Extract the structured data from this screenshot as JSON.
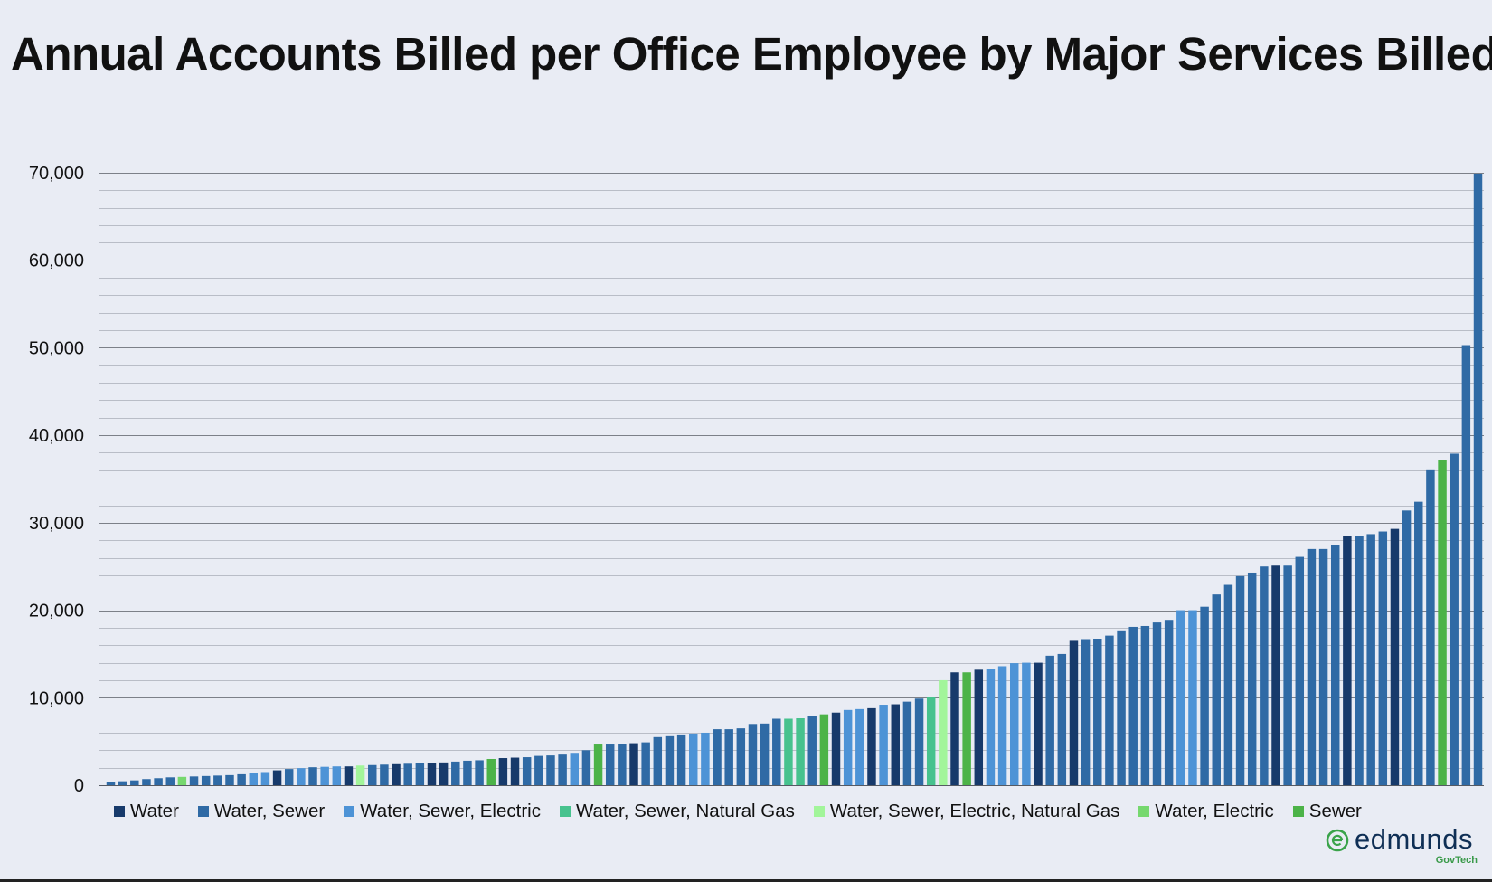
{
  "chart_data": {
    "type": "bar",
    "title": "Annual Accounts Billed per Office Employee by Major Services Billed",
    "xlabel": "",
    "ylabel": "",
    "ylim": [
      0,
      70000
    ],
    "y_major_ticks": [
      0,
      10000,
      20000,
      30000,
      40000,
      50000,
      60000,
      70000
    ],
    "y_tick_labels": [
      "0",
      "10,000",
      "20,000",
      "30,000",
      "40,000",
      "50,000",
      "60,000",
      "70,000"
    ],
    "minor_gridlines": true,
    "legend_position": "bottom",
    "series": [
      {
        "name": "Water",
        "color": "#173a6b"
      },
      {
        "name": "Water, Sewer",
        "color": "#2f6aa5"
      },
      {
        "name": "Water, Sewer, Electric",
        "color": "#4d93d6"
      },
      {
        "name": "Water, Sewer, Natural Gas",
        "color": "#47c28e"
      },
      {
        "name": "Water, Sewer, Electric, Natural Gas",
        "color": "#a2f59a"
      },
      {
        "name": "Water, Electric",
        "color": "#76d86e"
      },
      {
        "name": "Sewer",
        "color": "#4cb348"
      }
    ],
    "bars": [
      {
        "v": 400,
        "s": 1
      },
      {
        "v": 450,
        "s": 1
      },
      {
        "v": 550,
        "s": 1
      },
      {
        "v": 700,
        "s": 1
      },
      {
        "v": 800,
        "s": 1
      },
      {
        "v": 900,
        "s": 1
      },
      {
        "v": 950,
        "s": 5
      },
      {
        "v": 1000,
        "s": 1
      },
      {
        "v": 1050,
        "s": 1
      },
      {
        "v": 1100,
        "s": 1
      },
      {
        "v": 1150,
        "s": 1
      },
      {
        "v": 1250,
        "s": 1
      },
      {
        "v": 1350,
        "s": 2
      },
      {
        "v": 1500,
        "s": 2
      },
      {
        "v": 1700,
        "s": 0
      },
      {
        "v": 1850,
        "s": 1
      },
      {
        "v": 1950,
        "s": 2
      },
      {
        "v": 2050,
        "s": 1
      },
      {
        "v": 2100,
        "s": 2
      },
      {
        "v": 2150,
        "s": 2
      },
      {
        "v": 2150,
        "s": 0
      },
      {
        "v": 2250,
        "s": 4
      },
      {
        "v": 2300,
        "s": 1
      },
      {
        "v": 2350,
        "s": 1
      },
      {
        "v": 2400,
        "s": 0
      },
      {
        "v": 2450,
        "s": 1
      },
      {
        "v": 2500,
        "s": 1
      },
      {
        "v": 2550,
        "s": 0
      },
      {
        "v": 2600,
        "s": 0
      },
      {
        "v": 2700,
        "s": 1
      },
      {
        "v": 2800,
        "s": 1
      },
      {
        "v": 2850,
        "s": 1
      },
      {
        "v": 3000,
        "s": 6
      },
      {
        "v": 3100,
        "s": 0
      },
      {
        "v": 3150,
        "s": 0
      },
      {
        "v": 3200,
        "s": 1
      },
      {
        "v": 3350,
        "s": 1
      },
      {
        "v": 3400,
        "s": 1
      },
      {
        "v": 3500,
        "s": 1
      },
      {
        "v": 3700,
        "s": 2
      },
      {
        "v": 4000,
        "s": 1
      },
      {
        "v": 4650,
        "s": 6
      },
      {
        "v": 4650,
        "s": 1
      },
      {
        "v": 4700,
        "s": 1
      },
      {
        "v": 4800,
        "s": 0
      },
      {
        "v": 4900,
        "s": 1
      },
      {
        "v": 5500,
        "s": 1
      },
      {
        "v": 5600,
        "s": 1
      },
      {
        "v": 5800,
        "s": 1
      },
      {
        "v": 5900,
        "s": 2
      },
      {
        "v": 6000,
        "s": 2
      },
      {
        "v": 6400,
        "s": 1
      },
      {
        "v": 6400,
        "s": 1
      },
      {
        "v": 6500,
        "s": 1
      },
      {
        "v": 7000,
        "s": 1
      },
      {
        "v": 7050,
        "s": 1
      },
      {
        "v": 7600,
        "s": 1
      },
      {
        "v": 7600,
        "s": 3
      },
      {
        "v": 7650,
        "s": 3
      },
      {
        "v": 7900,
        "s": 1
      },
      {
        "v": 8100,
        "s": 6
      },
      {
        "v": 8300,
        "s": 0
      },
      {
        "v": 8600,
        "s": 2
      },
      {
        "v": 8700,
        "s": 2
      },
      {
        "v": 8800,
        "s": 0
      },
      {
        "v": 9200,
        "s": 2
      },
      {
        "v": 9250,
        "s": 0
      },
      {
        "v": 9550,
        "s": 1
      },
      {
        "v": 9900,
        "s": 1
      },
      {
        "v": 10100,
        "s": 3
      },
      {
        "v": 12000,
        "s": 4
      },
      {
        "v": 12900,
        "s": 0
      },
      {
        "v": 12900,
        "s": 6
      },
      {
        "v": 13200,
        "s": 0
      },
      {
        "v": 13300,
        "s": 2
      },
      {
        "v": 13600,
        "s": 2
      },
      {
        "v": 13950,
        "s": 2
      },
      {
        "v": 14000,
        "s": 2
      },
      {
        "v": 14000,
        "s": 0
      },
      {
        "v": 14800,
        "s": 1
      },
      {
        "v": 15000,
        "s": 1
      },
      {
        "v": 16500,
        "s": 0
      },
      {
        "v": 16700,
        "s": 1
      },
      {
        "v": 16750,
        "s": 1
      },
      {
        "v": 17100,
        "s": 1
      },
      {
        "v": 17700,
        "s": 1
      },
      {
        "v": 18100,
        "s": 1
      },
      {
        "v": 18200,
        "s": 1
      },
      {
        "v": 18600,
        "s": 1
      },
      {
        "v": 18900,
        "s": 1
      },
      {
        "v": 20000,
        "s": 2
      },
      {
        "v": 20000,
        "s": 2
      },
      {
        "v": 20400,
        "s": 1
      },
      {
        "v": 21800,
        "s": 1
      },
      {
        "v": 22900,
        "s": 1
      },
      {
        "v": 23900,
        "s": 1
      },
      {
        "v": 24300,
        "s": 1
      },
      {
        "v": 25000,
        "s": 1
      },
      {
        "v": 25100,
        "s": 0
      },
      {
        "v": 25100,
        "s": 1
      },
      {
        "v": 26100,
        "s": 1
      },
      {
        "v": 27000,
        "s": 1
      },
      {
        "v": 27000,
        "s": 1
      },
      {
        "v": 27500,
        "s": 1
      },
      {
        "v": 28500,
        "s": 0
      },
      {
        "v": 28500,
        "s": 1
      },
      {
        "v": 28700,
        "s": 1
      },
      {
        "v": 29000,
        "s": 1
      },
      {
        "v": 29300,
        "s": 0
      },
      {
        "v": 31400,
        "s": 1
      },
      {
        "v": 32400,
        "s": 1
      },
      {
        "v": 36000,
        "s": 1
      },
      {
        "v": 37200,
        "s": 6
      },
      {
        "v": 37900,
        "s": 1
      },
      {
        "v": 50300,
        "s": 1
      },
      {
        "v": 69900,
        "s": 1
      }
    ]
  },
  "legend": {
    "items": [
      {
        "label": "Water",
        "color": "#173a6b"
      },
      {
        "label": "Water, Sewer",
        "color": "#2f6aa5"
      },
      {
        "label": "Water, Sewer, Electric",
        "color": "#4d93d6"
      },
      {
        "label": "Water, Sewer, Natural Gas",
        "color": "#47c28e"
      },
      {
        "label": "Water, Sewer, Electric, Natural Gas",
        "color": "#a2f59a"
      },
      {
        "label": "Water, Electric",
        "color": "#76d86e"
      },
      {
        "label": "Sewer",
        "color": "#4cb348"
      }
    ]
  },
  "logo": {
    "wordmark": "edmunds",
    "sub": "GovTech",
    "icon": "edmunds-e-icon"
  }
}
